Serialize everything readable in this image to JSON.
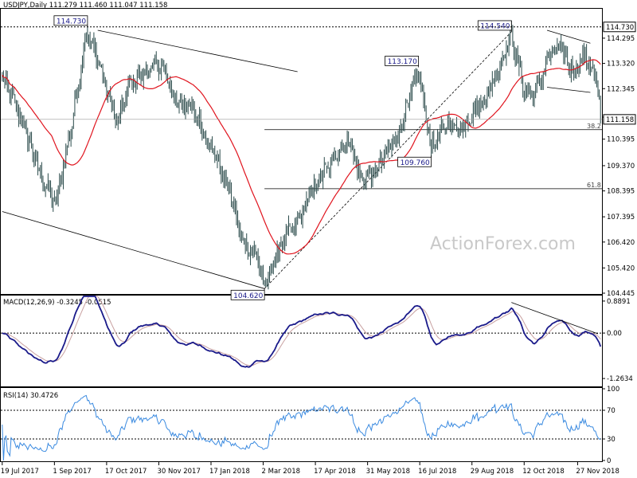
{
  "chart_data": {
    "type": "candlestick",
    "symbol_line": "USDJPY,Daily  111.279 111.460 111.047 111.158",
    "watermark": "ActionForex.com",
    "x_tick_labels": [
      "19 Jul 2017",
      "1 Sep 2017",
      "17 Oct 2017",
      "30 Nov 2017",
      "17 Jan 2018",
      "2 Mar 2018",
      "17 Apr 2018",
      "31 May 2018",
      "16 Jul 2018",
      "29 Aug 2018",
      "12 Oct 2018",
      "27 Nov 2018"
    ],
    "price_panel": {
      "ylim": [
        104.445,
        115.4
      ],
      "y_ticks": [
        114.295,
        113.32,
        112.345,
        111.245,
        110.395,
        109.37,
        108.395,
        107.395,
        106.42,
        105.42,
        104.445
      ],
      "y_tick_labels": [
        "114.295",
        "113.320",
        "112.345",
        "111.245",
        "110.395",
        "109.370",
        "108.395",
        "107.395",
        "106.420",
        "105.420",
        "104.445"
      ],
      "last_price": 111.158,
      "last_price_label": "111.158",
      "high_marker": 114.73,
      "high_marker_label": "114.730",
      "ma_color": "#e0141e",
      "candle_color": "#2a4a4a",
      "swing_labels": [
        {
          "bar": 67,
          "price": 114.73,
          "label": "114.730",
          "anchor": "above"
        },
        {
          "bar": 327,
          "price": 113.17,
          "label": "113.170",
          "anchor": "above"
        },
        {
          "bar": 400,
          "price": 114.54,
          "label": "114.540",
          "anchor": "above"
        },
        {
          "bar": 337,
          "price": 109.76,
          "label": "109.760",
          "anchor": "below"
        },
        {
          "bar": 206,
          "price": 104.62,
          "label": "104.620",
          "anchor": "below"
        }
      ],
      "fib_levels": [
        {
          "price": 110.76,
          "label": "38.2"
        },
        {
          "price": 108.48,
          "label": "61.8"
        }
      ]
    },
    "macd_panel": {
      "label": "MACD(12,26,9) -0.3245 -0.0515",
      "ylim": [
        -1.46,
        1.02
      ],
      "y_tick_labels": [
        "0.8891",
        "0.00",
        "-1.2634"
      ],
      "y_ticks": [
        0.8891,
        0.0,
        -1.2634
      ],
      "macd_color": "#1a1a8a",
      "signal_color": "#c8a0a0"
    },
    "rsi_panel": {
      "label": "RSI(14) 30.4726",
      "ylim": [
        0,
        100
      ],
      "y_ticks": [
        100,
        70,
        30,
        0
      ],
      "y_tick_labels": [
        "100",
        "70",
        "30",
        "0"
      ],
      "rsi_color": "#3a8ae0",
      "last_value": 30.47
    },
    "key_points": [
      [
        0,
        112.8
      ],
      [
        15,
        111.2
      ],
      [
        30,
        109.0
      ],
      [
        42,
        107.9
      ],
      [
        55,
        111.0
      ],
      [
        66,
        114.5
      ],
      [
        75,
        113.5
      ],
      [
        90,
        111.0
      ],
      [
        100,
        112.5
      ],
      [
        112,
        113.0
      ],
      [
        125,
        113.3
      ],
      [
        135,
        112.0
      ],
      [
        150,
        111.5
      ],
      [
        165,
        110.0
      ],
      [
        178,
        108.5
      ],
      [
        188,
        106.5
      ],
      [
        200,
        105.9
      ],
      [
        206,
        104.7
      ],
      [
        220,
        106.5
      ],
      [
        230,
        107.0
      ],
      [
        245,
        108.5
      ],
      [
        262,
        109.8
      ],
      [
        272,
        110.4
      ],
      [
        282,
        108.8
      ],
      [
        295,
        109.3
      ],
      [
        310,
        110.5
      ],
      [
        327,
        113.0
      ],
      [
        337,
        110.1
      ],
      [
        350,
        111.0
      ],
      [
        360,
        110.8
      ],
      [
        380,
        112.0
      ],
      [
        400,
        114.4
      ],
      [
        410,
        112.3
      ],
      [
        418,
        112.0
      ],
      [
        428,
        113.5
      ],
      [
        438,
        114.0
      ],
      [
        448,
        113.0
      ],
      [
        458,
        113.6
      ],
      [
        466,
        112.8
      ],
      [
        470,
        111.2
      ]
    ],
    "total_bars": 471
  }
}
